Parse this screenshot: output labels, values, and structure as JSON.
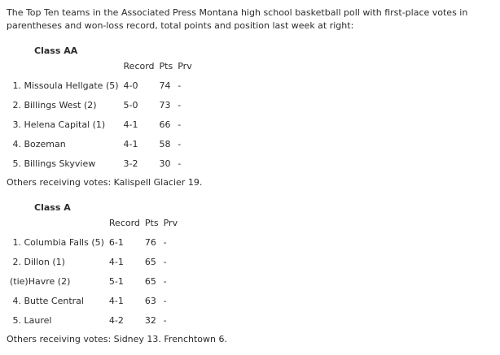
{
  "page": {
    "background_color": "#ffffff",
    "text_color": "#2b2b2b"
  },
  "intro": {
    "line1": "The Top Ten teams in the Associated Press Montana high school basketball poll with first-place votes in",
    "line2": "parentheses and won-loss record, total points and position last week at right:"
  },
  "tables": [
    {
      "heading": "Class AA",
      "headers": {
        "record": "Record",
        "pts": "Pts",
        "prv": "Prv"
      },
      "rows": [
        {
          "team": " 1. Missoula Hellgate (5)",
          "record": "4-0",
          "pts": "74",
          "prv": "-"
        },
        {
          "team": " 2. Billings West (2)",
          "record": "5-0",
          "pts": "73",
          "prv": "-"
        },
        {
          "team": " 3. Helena Capital (1)",
          "record": "4-1",
          "pts": "66",
          "prv": "-"
        },
        {
          "team": " 4. Bozeman",
          "record": "4-1",
          "pts": "58",
          "prv": "-"
        },
        {
          "team": " 5. Billings Skyview",
          "record": "3-2",
          "pts": "30",
          "prv": "-"
        }
      ],
      "others": "Others receiving votes: Kalispell Glacier 19."
    },
    {
      "heading": "Class A",
      "headers": {
        "record": "Record",
        "pts": "Pts",
        "prv": "Prv"
      },
      "rows": [
        {
          "team": " 1. Columbia Falls (5)",
          "record": "6-1",
          "pts": "76",
          "prv": "-"
        },
        {
          "team": " 2. Dillon (1)",
          "record": "4-1",
          "pts": "65",
          "prv": "-"
        },
        {
          "team": "(tie)Havre (2)",
          "record": "5-1",
          "pts": "65",
          "prv": "-"
        },
        {
          "team": " 4. Butte Central",
          "record": "4-1",
          "pts": "63",
          "prv": "-"
        },
        {
          "team": " 5. Laurel",
          "record": "4-2",
          "pts": "32",
          "prv": "-"
        }
      ],
      "others": "Others receiving votes: Sidney 13. Frenchtown 6."
    }
  ]
}
